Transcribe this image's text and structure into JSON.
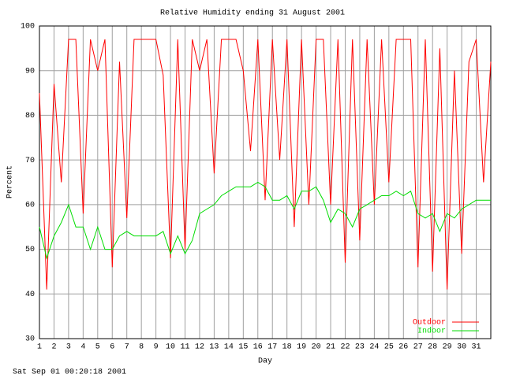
{
  "chart_data": {
    "type": "line",
    "title": "Relative Humidity ending 31 August 2001",
    "x_label": "Day",
    "y_label": "Percent",
    "footer": "Sat Sep 01 00:20:18 2001",
    "xlim": [
      1,
      32
    ],
    "ylim": [
      30,
      100
    ],
    "xticks": [
      1,
      2,
      3,
      4,
      5,
      6,
      7,
      8,
      9,
      10,
      11,
      12,
      13,
      14,
      15,
      16,
      17,
      18,
      19,
      20,
      21,
      22,
      23,
      24,
      25,
      26,
      27,
      28,
      29,
      30,
      31
    ],
    "yticks": [
      30,
      40,
      50,
      60,
      70,
      80,
      90,
      100
    ],
    "grid": true,
    "legend": "lower right",
    "x": [
      1,
      1.5,
      2,
      2.5,
      3,
      3.5,
      4,
      4.5,
      5,
      5.5,
      6,
      6.5,
      7,
      7.5,
      8,
      8.5,
      9,
      9.5,
      10,
      10.5,
      11,
      11.5,
      12,
      12.5,
      13,
      13.5,
      14,
      14.5,
      15,
      15.5,
      16,
      16.5,
      17,
      17.5,
      18,
      18.5,
      19,
      19.5,
      20,
      20.5,
      21,
      21.5,
      22,
      22.5,
      23,
      23.5,
      24,
      24.5,
      25,
      25.5,
      26,
      26.5,
      27,
      27.5,
      28,
      28.5,
      29,
      29.5,
      30,
      30.5,
      31,
      31.5,
      32
    ],
    "series": [
      {
        "name": "Outdoor",
        "color": "#ff0000",
        "values": [
          85,
          41,
          87,
          65,
          97,
          97,
          58,
          97,
          90,
          97,
          46,
          92,
          57,
          97,
          97,
          97,
          97,
          89,
          48,
          97,
          50,
          97,
          90,
          97,
          67,
          97,
          97,
          97,
          90,
          72,
          97,
          61,
          97,
          70,
          97,
          55,
          97,
          60,
          97,
          97,
          60,
          97,
          47,
          97,
          52,
          97,
          60,
          97,
          65,
          97,
          97,
          97,
          46,
          97,
          45,
          95,
          41,
          90,
          49,
          92,
          97,
          65,
          92
        ]
      },
      {
        "name": "Indoor",
        "color": "#00dd00",
        "values": [
          55,
          48,
          53,
          56,
          60,
          55,
          55,
          50,
          55,
          50,
          50,
          53,
          54,
          53,
          53,
          53,
          53,
          54,
          49,
          53,
          49,
          52,
          58,
          59,
          60,
          62,
          63,
          64,
          64,
          64,
          65,
          64,
          61,
          61,
          62,
          59,
          63,
          63,
          64,
          61,
          56,
          59,
          58,
          55,
          59,
          60,
          61,
          62,
          62,
          63,
          62,
          63,
          58,
          57,
          58,
          54,
          58,
          57,
          59,
          60,
          61,
          61,
          61
        ]
      }
    ]
  }
}
